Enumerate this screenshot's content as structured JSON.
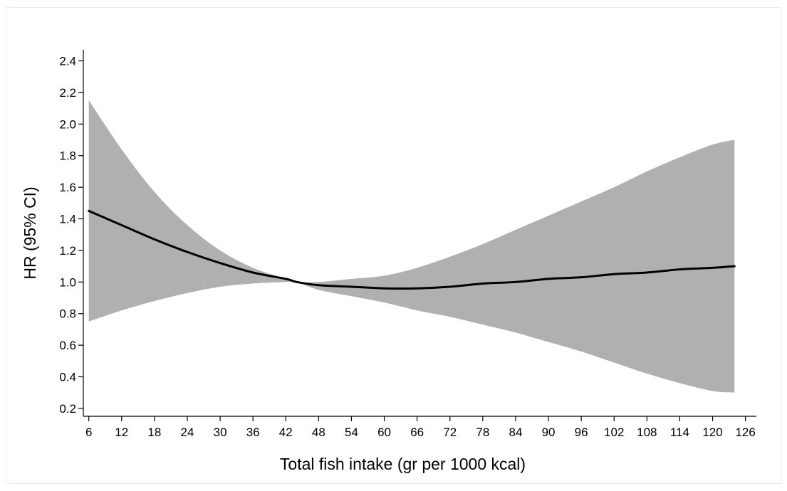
{
  "chart_data": {
    "type": "line",
    "title": "",
    "xlabel": "Total fish intake (gr per 1000 kcal)",
    "ylabel": "HR (95% CI)",
    "x_ticks": [
      6,
      12,
      18,
      24,
      30,
      36,
      42,
      48,
      54,
      60,
      66,
      72,
      78,
      84,
      90,
      96,
      102,
      108,
      114,
      120,
      126
    ],
    "y_ticks": [
      0.2,
      0.4,
      0.6,
      0.8,
      1.0,
      1.2,
      1.4,
      1.6,
      1.8,
      2.0,
      2.2,
      2.4
    ],
    "xlim": [
      5,
      128
    ],
    "ylim": [
      0.15,
      2.47
    ],
    "grid": false,
    "series": [
      {
        "role": "estimate",
        "x": [
          6,
          12,
          18,
          24,
          30,
          36,
          42,
          44,
          48,
          54,
          60,
          66,
          72,
          78,
          84,
          90,
          96,
          102,
          108,
          114,
          120,
          124
        ],
        "y": [
          1.45,
          1.36,
          1.27,
          1.19,
          1.12,
          1.06,
          1.02,
          1.0,
          0.98,
          0.97,
          0.96,
          0.96,
          0.97,
          0.99,
          1.0,
          1.02,
          1.03,
          1.05,
          1.06,
          1.08,
          1.09,
          1.1
        ]
      },
      {
        "role": "ci_upper",
        "x": [
          6,
          12,
          18,
          24,
          30,
          36,
          42,
          44,
          48,
          54,
          60,
          66,
          72,
          78,
          84,
          90,
          96,
          102,
          108,
          114,
          120,
          124
        ],
        "y": [
          2.15,
          1.84,
          1.57,
          1.36,
          1.2,
          1.09,
          1.02,
          1.0,
          1.0,
          1.02,
          1.04,
          1.09,
          1.16,
          1.24,
          1.33,
          1.42,
          1.51,
          1.6,
          1.7,
          1.79,
          1.87,
          1.9
        ]
      },
      {
        "role": "ci_lower",
        "x": [
          6,
          12,
          18,
          24,
          30,
          36,
          42,
          44,
          48,
          54,
          60,
          66,
          72,
          78,
          84,
          90,
          96,
          102,
          108,
          114,
          120,
          124
        ],
        "y": [
          0.75,
          0.82,
          0.88,
          0.93,
          0.97,
          0.99,
          1.0,
          1.0,
          0.95,
          0.91,
          0.87,
          0.82,
          0.78,
          0.73,
          0.68,
          0.62,
          0.56,
          0.49,
          0.42,
          0.36,
          0.31,
          0.3
        ]
      }
    ],
    "colors": {
      "band": "#b0b0b0",
      "line": "#000000",
      "axis": "#000000"
    }
  }
}
